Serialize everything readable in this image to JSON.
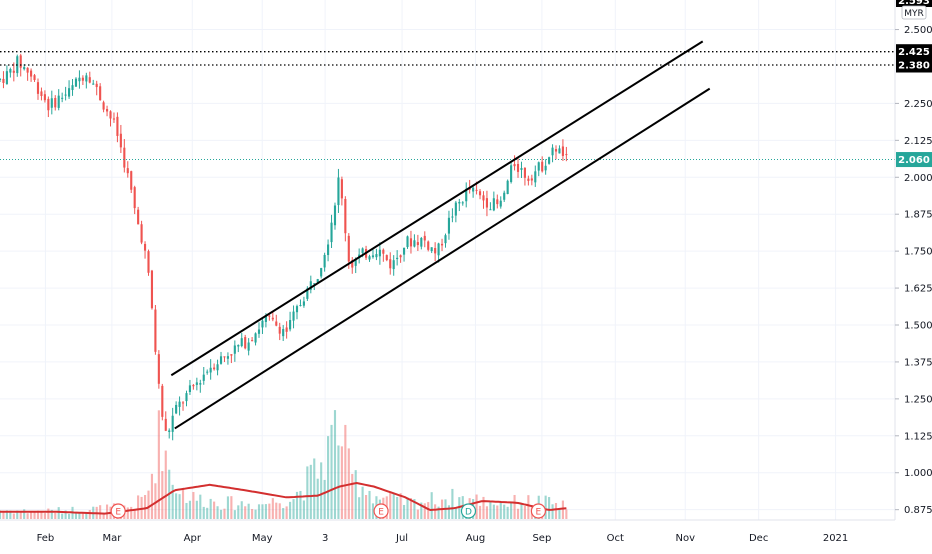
{
  "chart_data": {
    "type": "candlestick",
    "currency": "MYR",
    "y_ticks": [
      "2.500",
      "2.250",
      "2.125",
      "2.000",
      "1.875",
      "1.750",
      "1.625",
      "1.500",
      "1.375",
      "1.250",
      "1.125",
      "1.000",
      "0.875"
    ],
    "top_price_label": "2.593",
    "ylim": [
      0.84,
      2.6
    ],
    "x_ticks": [
      {
        "label": "Feb",
        "t": 0.65
      },
      {
        "label": "Mar",
        "t": 1.6
      },
      {
        "label": "Apr",
        "t": 2.75
      },
      {
        "label": "May",
        "t": 3.75
      },
      {
        "label": "3",
        "t": 4.65
      },
      {
        "label": "Jul",
        "t": 5.75
      },
      {
        "label": "Aug",
        "t": 6.8
      },
      {
        "label": "Sep",
        "t": 7.75
      },
      {
        "label": "Oct",
        "t": 8.8
      },
      {
        "label": "Nov",
        "t": 9.8
      },
      {
        "label": "Dec",
        "t": 10.85
      },
      {
        "label": "2021",
        "t": 11.95
      }
    ],
    "xlim": [
      0,
      12.8
    ],
    "horizontal_levels": [
      {
        "label": "2.425",
        "value": 2.425,
        "style": "dotted",
        "color": "#000000"
      },
      {
        "label": "2.380",
        "value": 2.38,
        "style": "dotted",
        "color": "#000000"
      },
      {
        "label": "2.060",
        "value": 2.06,
        "style": "dotted",
        "color": "#26a69a",
        "current": true
      }
    ],
    "trend_channel": [
      {
        "t": [
          2.45,
          10.05
        ],
        "y": [
          1.33,
          2.46
        ]
      },
      {
        "t": [
          2.5,
          10.15
        ],
        "y": [
          1.15,
          2.3
        ]
      }
    ],
    "price_anchors": [
      [
        0.0,
        2.33
      ],
      [
        0.12,
        2.35
      ],
      [
        0.25,
        2.39
      ],
      [
        0.4,
        2.36
      ],
      [
        0.5,
        2.32
      ],
      [
        0.7,
        2.24
      ],
      [
        0.85,
        2.27
      ],
      [
        1.0,
        2.29
      ],
      [
        1.15,
        2.34
      ],
      [
        1.25,
        2.36
      ],
      [
        1.35,
        2.31
      ],
      [
        1.5,
        2.24
      ],
      [
        1.65,
        2.17
      ],
      [
        1.75,
        2.08
      ],
      [
        1.85,
        1.98
      ],
      [
        1.95,
        1.86
      ],
      [
        2.05,
        1.78
      ],
      [
        2.15,
        1.62
      ],
      [
        2.22,
        1.42
      ],
      [
        2.3,
        1.22
      ],
      [
        2.38,
        1.12
      ],
      [
        2.5,
        1.21
      ],
      [
        2.7,
        1.27
      ],
      [
        3.0,
        1.36
      ],
      [
        3.3,
        1.41
      ],
      [
        3.55,
        1.45
      ],
      [
        3.8,
        1.52
      ],
      [
        4.1,
        1.48
      ],
      [
        4.35,
        1.6
      ],
      [
        4.55,
        1.68
      ],
      [
        4.7,
        1.8
      ],
      [
        4.85,
        2.0
      ],
      [
        5.0,
        1.7
      ],
      [
        5.2,
        1.74
      ],
      [
        5.4,
        1.76
      ],
      [
        5.6,
        1.7
      ],
      [
        5.8,
        1.78
      ],
      [
        6.05,
        1.79
      ],
      [
        6.25,
        1.74
      ],
      [
        6.45,
        1.87
      ],
      [
        6.7,
        1.96
      ],
      [
        6.95,
        1.92
      ],
      [
        7.15,
        1.9
      ],
      [
        7.35,
        2.05
      ],
      [
        7.55,
        2.0
      ],
      [
        7.75,
        2.04
      ],
      [
        7.95,
        2.1
      ],
      [
        8.1,
        2.06
      ]
    ],
    "volume_anchors": [
      [
        0.0,
        0.05
      ],
      [
        0.5,
        0.04
      ],
      [
        1.0,
        0.05
      ],
      [
        1.6,
        0.06
      ],
      [
        1.9,
        0.07
      ],
      [
        2.1,
        0.13
      ],
      [
        2.2,
        0.3
      ],
      [
        2.3,
        0.5
      ],
      [
        2.45,
        0.22
      ],
      [
        2.7,
        0.12
      ],
      [
        3.2,
        0.09
      ],
      [
        3.7,
        0.08
      ],
      [
        4.2,
        0.12
      ],
      [
        4.6,
        0.3
      ],
      [
        4.85,
        0.55
      ],
      [
        5.0,
        0.25
      ],
      [
        5.4,
        0.12
      ],
      [
        5.9,
        0.09
      ],
      [
        6.4,
        0.12
      ],
      [
        6.7,
        0.11
      ],
      [
        7.2,
        0.09
      ],
      [
        7.7,
        0.1
      ],
      [
        8.1,
        0.07
      ]
    ],
    "volume_ma_anchors": [
      [
        0.0,
        0.04
      ],
      [
        0.8,
        0.04
      ],
      [
        1.5,
        0.03
      ],
      [
        2.1,
        0.06
      ],
      [
        2.5,
        0.16
      ],
      [
        3.0,
        0.19
      ],
      [
        3.5,
        0.16
      ],
      [
        4.1,
        0.12
      ],
      [
        4.55,
        0.13
      ],
      [
        4.85,
        0.18
      ],
      [
        5.1,
        0.2
      ],
      [
        5.35,
        0.18
      ],
      [
        5.8,
        0.12
      ],
      [
        6.15,
        0.05
      ],
      [
        6.5,
        0.06
      ],
      [
        6.9,
        0.1
      ],
      [
        7.4,
        0.09
      ],
      [
        7.85,
        0.05
      ],
      [
        8.1,
        0.06
      ]
    ],
    "event_markers": [
      {
        "label": "E",
        "t": 1.69,
        "color": "#ef5350"
      },
      {
        "label": "E",
        "t": 5.45,
        "color": "#ef5350"
      },
      {
        "label": "D",
        "t": 6.7,
        "color": "#26a69a"
      },
      {
        "label": "E",
        "t": 7.7,
        "color": "#ef5350"
      }
    ],
    "colors": {
      "up": "#26a69a",
      "down": "#ef5350",
      "volume_ma": "#d32f2f",
      "channel": "#000000"
    }
  }
}
